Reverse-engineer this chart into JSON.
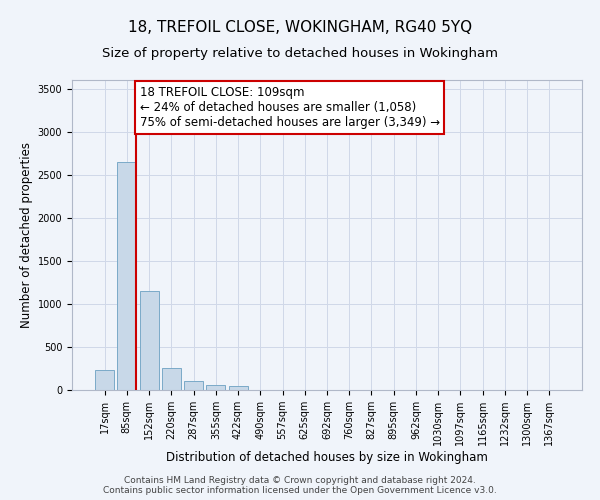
{
  "title": "18, TREFOIL CLOSE, WOKINGHAM, RG40 5YQ",
  "subtitle": "Size of property relative to detached houses in Wokingham",
  "xlabel": "Distribution of detached houses by size in Wokingham",
  "ylabel": "Number of detached properties",
  "categories": [
    "17sqm",
    "85sqm",
    "152sqm",
    "220sqm",
    "287sqm",
    "355sqm",
    "422sqm",
    "490sqm",
    "557sqm",
    "625sqm",
    "692sqm",
    "760sqm",
    "827sqm",
    "895sqm",
    "962sqm",
    "1030sqm",
    "1097sqm",
    "1165sqm",
    "1232sqm",
    "1300sqm",
    "1367sqm"
  ],
  "values": [
    230,
    2650,
    1150,
    260,
    100,
    55,
    45,
    0,
    0,
    0,
    0,
    0,
    0,
    0,
    0,
    0,
    0,
    0,
    0,
    0,
    0
  ],
  "bar_color": "#c8d8e8",
  "bar_edge_color": "#7aaac8",
  "grid_color": "#d0d8e8",
  "annotation_box_color": "#ffffff",
  "annotation_border_color": "#cc0000",
  "property_line_color": "#cc0000",
  "property_label": "18 TREFOIL CLOSE: 109sqm",
  "smaller_pct": "24%",
  "smaller_count": "1,058",
  "larger_pct": "75%",
  "larger_count": "3,349",
  "ylim": [
    0,
    3600
  ],
  "yticks": [
    0,
    500,
    1000,
    1500,
    2000,
    2500,
    3000,
    3500
  ],
  "footer_line1": "Contains HM Land Registry data © Crown copyright and database right 2024.",
  "footer_line2": "Contains public sector information licensed under the Open Government Licence v3.0.",
  "bg_color": "#f0f4fa",
  "title_fontsize": 11,
  "subtitle_fontsize": 9.5,
  "annotation_fontsize": 8.5,
  "tick_fontsize": 7,
  "axis_label_fontsize": 8.5,
  "footer_fontsize": 6.5,
  "property_line_x": 1.42
}
